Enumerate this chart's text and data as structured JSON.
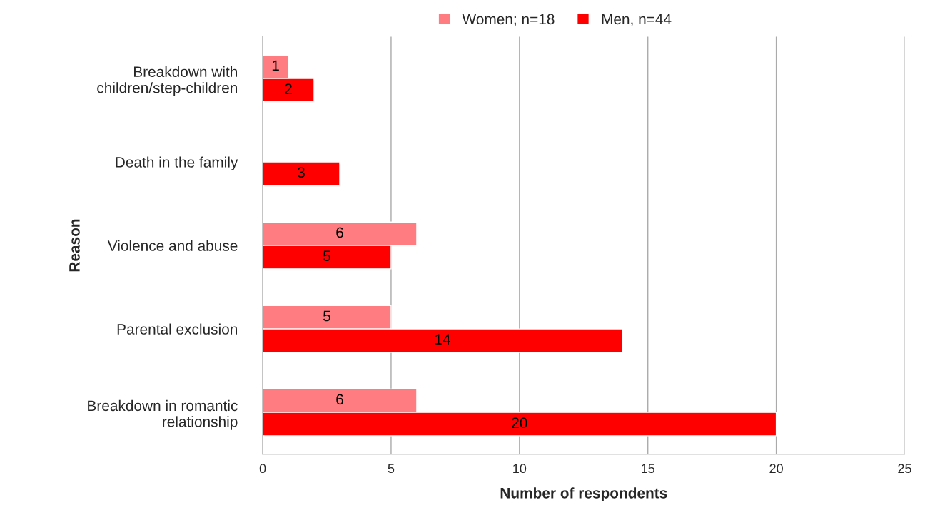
{
  "chart_data": {
    "type": "bar",
    "orientation": "horizontal",
    "xlabel": "Number of respondents",
    "ylabel": "Reason",
    "categories": [
      "Breakdown with\nchildren/step-children",
      "Death in the family",
      "Violence and abuse",
      "Parental exclusion",
      "Breakdown in romantic\nrelationship"
    ],
    "series": [
      {
        "name": "Women; n=18",
        "color": "#ff7c80",
        "values": [
          1,
          null,
          6,
          5,
          6
        ]
      },
      {
        "name": "Men, n=44",
        "color": "#ff0000",
        "values": [
          2,
          3,
          5,
          14,
          20
        ]
      }
    ],
    "xlim": [
      0,
      25
    ],
    "xticks": [
      0,
      5,
      10,
      15,
      20,
      25
    ],
    "grid": "x",
    "legend": "top",
    "data_labels": true
  }
}
